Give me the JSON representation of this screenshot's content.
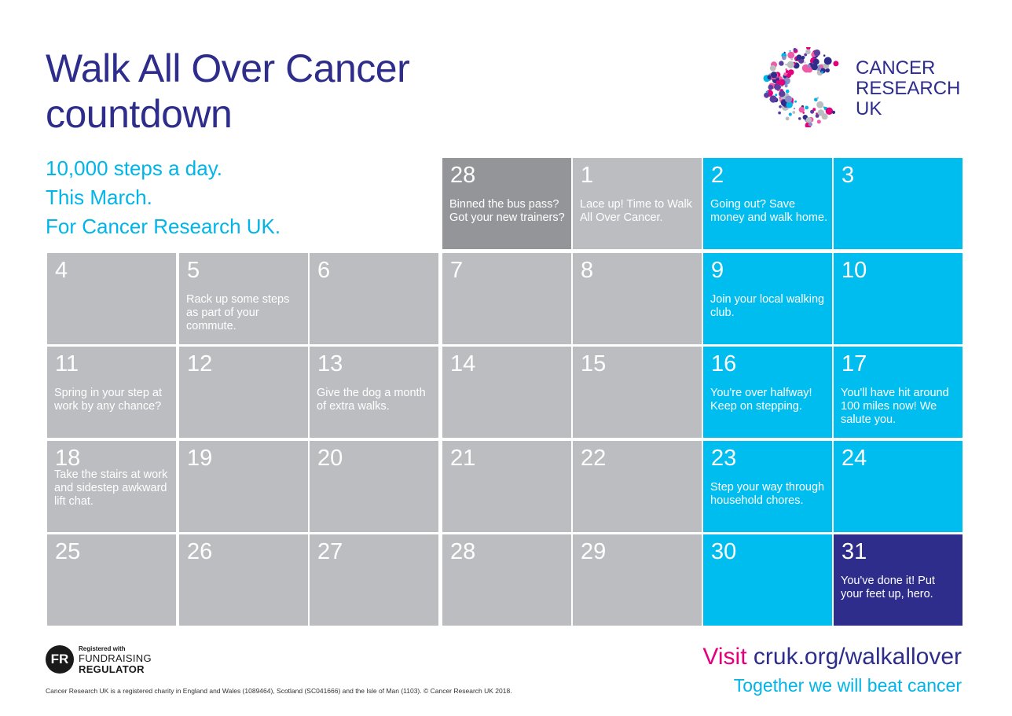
{
  "header": {
    "title_line1": "Walk All Over Cancer",
    "title_line2": "countdown",
    "tagline": [
      "10,000 steps a day.",
      "This March.",
      "For Cancer Research UK."
    ]
  },
  "logo": {
    "line1": "CANCER",
    "line2": "RESEARCH",
    "line3": "UK"
  },
  "colors": {
    "navy": "#2e2d8c",
    "cyan": "#00bdf0",
    "grey": "#bcbdc0",
    "dark_grey": "#939598",
    "magenta": "#e4007c"
  },
  "calendar": [
    [
      {
        "day": "28",
        "note": "Binned the bus pass? Got your new trainers?",
        "style": "dark"
      },
      {
        "day": "1",
        "note": "Lace up! Time to Walk All Over Cancer.",
        "style": "grey"
      },
      {
        "day": "2",
        "note": "Going out? Save money and walk home.",
        "style": "cyan"
      },
      {
        "day": "3",
        "note": "",
        "style": "cyan"
      }
    ],
    [
      {
        "day": "4",
        "note": "",
        "style": "grey"
      },
      {
        "day": "5",
        "note": "Rack up some steps as part of your commute.",
        "style": "grey"
      },
      {
        "day": "6",
        "note": "",
        "style": "grey"
      },
      {
        "day": "7",
        "note": "",
        "style": "grey"
      },
      {
        "day": "8",
        "note": "",
        "style": "grey"
      },
      {
        "day": "9",
        "note": "Join your local walking club.",
        "style": "cyan"
      },
      {
        "day": "10",
        "note": "",
        "style": "cyan"
      }
    ],
    [
      {
        "day": "11",
        "note": "Spring in your step at work by any chance?",
        "style": "grey"
      },
      {
        "day": "12",
        "note": "",
        "style": "grey"
      },
      {
        "day": "13",
        "note": "Give the dog a month of extra walks.",
        "style": "grey"
      },
      {
        "day": "14",
        "note": "",
        "style": "grey"
      },
      {
        "day": "15",
        "note": "",
        "style": "grey"
      },
      {
        "day": "16",
        "note": "You're over halfway! Keep on stepping.",
        "style": "cyan"
      },
      {
        "day": "17",
        "note": "You'll have hit around 100 miles now! We salute you.",
        "style": "cyan"
      }
    ],
    [
      {
        "day": "18",
        "note": "Take the stairs at work and sidestep awkward lift chat.",
        "style": "grey"
      },
      {
        "day": "19",
        "note": "",
        "style": "grey"
      },
      {
        "day": "20",
        "note": "",
        "style": "grey"
      },
      {
        "day": "21",
        "note": "",
        "style": "grey"
      },
      {
        "day": "22",
        "note": "",
        "style": "grey"
      },
      {
        "day": "23",
        "note": "Step your way through household chores.",
        "style": "cyan"
      },
      {
        "day": "24",
        "note": "",
        "style": "cyan"
      }
    ],
    [
      {
        "day": "25",
        "note": "",
        "style": "grey"
      },
      {
        "day": "26",
        "note": "",
        "style": "grey"
      },
      {
        "day": "27",
        "note": "",
        "style": "grey"
      },
      {
        "day": "28",
        "note": "",
        "style": "grey"
      },
      {
        "day": "29",
        "note": "",
        "style": "grey"
      },
      {
        "day": "30",
        "note": "",
        "style": "cyan"
      },
      {
        "day": "31",
        "note": "You've done it! Put your feet up, hero.",
        "style": "navy"
      }
    ]
  ],
  "footer": {
    "fr_badge": "FR",
    "fr_line1": "Registered with",
    "fr_line2": "FUNDRAISING",
    "fr_line3": "REGULATOR",
    "legal": "Cancer Research UK is a registered charity in England and Wales (1089464), Scotland (SC041666) and the Isle of Man (1103). © Cancer Research UK 2018.",
    "visit_label": "Visit",
    "visit_url": "cruk.org/walkallover",
    "slogan": "Together we will beat cancer"
  }
}
